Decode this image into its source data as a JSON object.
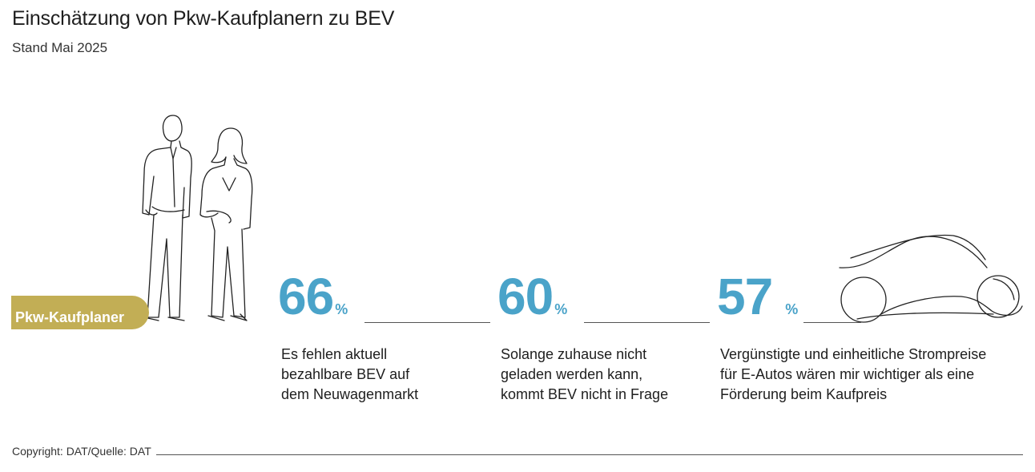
{
  "header": {
    "title": "Einschätzung von Pkw-Kaufplanern zu BEV",
    "subtitle": "Stand Mai 2025"
  },
  "group_label": "Pkw-Kaufplaner",
  "chart_data": {
    "type": "table",
    "title": "Einschätzung von Pkw-Kaufplanern zu BEV",
    "subtitle": "Stand Mai 2025",
    "unit": "%",
    "items": [
      {
        "value": 66,
        "label": "Es fehlen aktuell\nbezahlbare BEV auf\ndem Neuwagenmarkt"
      },
      {
        "value": 60,
        "label": "Solange zuhause nicht\ngeladen werden kann,\nkommt BEV nicht in Frage"
      },
      {
        "value": 57,
        "label": "Vergünstigte und einheitliche Strompreise\nfür E-Autos wären mir wichtiger als eine\nFörderung beim Kaufpreis"
      }
    ]
  },
  "footer": {
    "source": "Copyright: DAT/Quelle: DAT"
  },
  "icons": {
    "people": "people-outline-icon",
    "car": "car-outline-icon"
  },
  "colors": {
    "accent": "#4aa3c9",
    "badge": "#c2ae55"
  }
}
